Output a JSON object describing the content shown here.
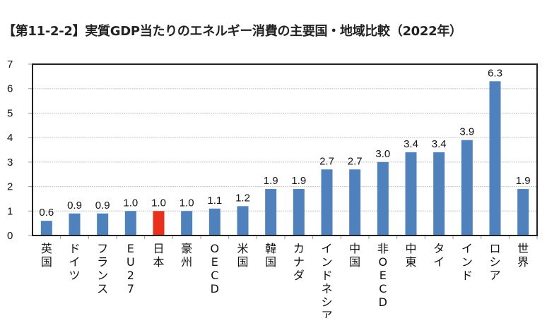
{
  "chart_data": {
    "type": "bar",
    "title": "【第11-2-2】実質GDP当たりのエネルギー消費の主要国・地域比較（2022年）",
    "xlabel": "",
    "ylabel": "",
    "ylim": [
      0,
      7
    ],
    "yticks": [
      "0",
      "1",
      "2",
      "3",
      "4",
      "5",
      "6",
      "7"
    ],
    "grid": true,
    "categories": [
      "英国",
      "ドイツ",
      "フランス",
      "EU27",
      "日本",
      "豪州",
      "OECD",
      "米国",
      "韓国",
      "カナダ",
      "インドネシア",
      "中国",
      "非OECD",
      "中東",
      "タイ",
      "インド",
      "ロシア",
      "世界"
    ],
    "values": [
      0.6,
      0.9,
      0.9,
      1.0,
      1.0,
      1.0,
      1.1,
      1.2,
      1.9,
      1.9,
      2.7,
      2.7,
      3.0,
      3.4,
      3.4,
      3.9,
      6.3,
      1.9
    ],
    "data_labels": [
      "0.6",
      "0.9",
      "0.9",
      "1.0",
      "1.0",
      "1.0",
      "1.1",
      "1.2",
      "1.9",
      "1.9",
      "2.7",
      "2.7",
      "3.0",
      "3.4",
      "3.4",
      "3.9",
      "6.3",
      "1.9"
    ],
    "highlight_index": 4,
    "colors": {
      "bar": "#4f81bd",
      "highlight": "#e8301c",
      "grid": "#c8c8c8",
      "axis": "#222222"
    }
  }
}
